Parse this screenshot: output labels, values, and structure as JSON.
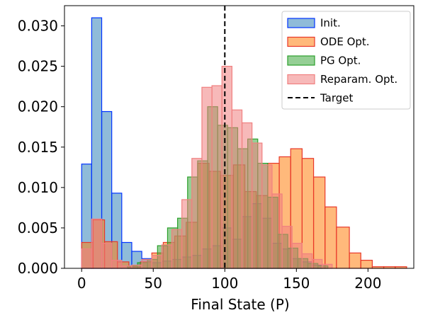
{
  "chart_data": {
    "type": "histogram",
    "xlabel": "Final State (P)",
    "ylabel": "",
    "xlim": [
      -12,
      232
    ],
    "ylim": [
      0,
      0.0325
    ],
    "xticks": [
      0,
      50,
      100,
      150,
      200
    ],
    "yticks": [
      0.0,
      0.005,
      0.01,
      0.015,
      0.02,
      0.025,
      0.03
    ],
    "ytick_labels": [
      "0.000",
      "0.005",
      "0.010",
      "0.015",
      "0.020",
      "0.025",
      "0.030"
    ],
    "target": 100,
    "legend_position": "top-right",
    "series": [
      {
        "name": "Init.",
        "face": "#1f77b4",
        "edge": "#0033ff",
        "alpha": 0.5,
        "bins": [
          [
            0,
            7,
            0.0129
          ],
          [
            7,
            14,
            0.031
          ],
          [
            14,
            21,
            0.0194
          ],
          [
            21,
            28,
            0.0093
          ],
          [
            28,
            35,
            0.0032
          ],
          [
            35,
            42,
            0.0021
          ],
          [
            42,
            49,
            0.0012
          ],
          [
            49,
            56,
            0.0007
          ],
          [
            56,
            63,
            0.0009
          ],
          [
            63,
            70,
            0.0011
          ],
          [
            70,
            77,
            0.0014
          ],
          [
            77,
            84,
            0.0016
          ],
          [
            84,
            91,
            0.0024
          ],
          [
            91,
            98,
            0.0028
          ],
          [
            98,
            105,
            0.005
          ],
          [
            105,
            112,
            0.0036
          ],
          [
            112,
            119,
            0.0064
          ],
          [
            119,
            126,
            0.008
          ],
          [
            126,
            133,
            0.0062
          ],
          [
            133,
            140,
            0.0031
          ],
          [
            140,
            147,
            0.0024
          ],
          [
            147,
            154,
            0.0012
          ],
          [
            154,
            161,
            0.0008
          ],
          [
            161,
            168,
            0.0004
          ]
        ]
      },
      {
        "name": "ODE Opt.",
        "face": "#ff7f0e",
        "edge": "#e8372a",
        "alpha": 0.55,
        "bins": [
          [
            0,
            8,
            0.0032
          ],
          [
            8,
            16,
            0.006
          ],
          [
            16,
            25,
            0.0033
          ],
          [
            25,
            33,
            0.0008
          ],
          [
            33,
            41,
            0.0002
          ],
          [
            41,
            49,
            0.0008
          ],
          [
            49,
            57,
            0.0019
          ],
          [
            57,
            65,
            0.0032
          ],
          [
            65,
            73,
            0.004
          ],
          [
            73,
            81,
            0.0057
          ],
          [
            81,
            89,
            0.013
          ],
          [
            89,
            97,
            0.012
          ],
          [
            97,
            106,
            0.0115
          ],
          [
            106,
            114,
            0.0128
          ],
          [
            114,
            122,
            0.0095
          ],
          [
            122,
            130,
            0.009
          ],
          [
            130,
            138,
            0.013
          ],
          [
            138,
            146,
            0.0138
          ],
          [
            146,
            154,
            0.0148
          ],
          [
            154,
            162,
            0.0136
          ],
          [
            162,
            170,
            0.0113
          ],
          [
            170,
            178,
            0.0076
          ],
          [
            178,
            187,
            0.0051
          ],
          [
            187,
            195,
            0.0019
          ],
          [
            195,
            203,
            0.001
          ],
          [
            203,
            211,
            0.0002
          ],
          [
            211,
            219,
            0.0002
          ],
          [
            219,
            227,
            0.0002
          ]
        ]
      },
      {
        "name": "PG Opt.",
        "face": "#2ca02c",
        "edge": "#2ca02c",
        "alpha": 0.5,
        "bins": [
          [
            32,
            39,
            0.0003
          ],
          [
            39,
            46,
            0.0007
          ],
          [
            46,
            53,
            0.0011
          ],
          [
            53,
            60,
            0.0028
          ],
          [
            60,
            67,
            0.005
          ],
          [
            67,
            74,
            0.0062
          ],
          [
            74,
            81,
            0.0113
          ],
          [
            81,
            88,
            0.0133
          ],
          [
            88,
            95,
            0.02
          ],
          [
            95,
            102,
            0.0177
          ],
          [
            102,
            109,
            0.0174
          ],
          [
            109,
            116,
            0.0148
          ],
          [
            116,
            123,
            0.016
          ],
          [
            123,
            130,
            0.013
          ],
          [
            130,
            137,
            0.0088
          ],
          [
            137,
            144,
            0.0042
          ],
          [
            144,
            151,
            0.0025
          ],
          [
            151,
            158,
            0.0012
          ],
          [
            158,
            165,
            0.0006
          ],
          [
            165,
            172,
            0.0003
          ]
        ]
      },
      {
        "name": "Reparam. Opt.",
        "face": "#f08080",
        "edge": "#f08080",
        "alpha": 0.55,
        "bins": [
          [
            0,
            7,
            0.0024
          ],
          [
            7,
            14,
            0.0061
          ],
          [
            14,
            21,
            0.0031
          ],
          [
            21,
            28,
            0.001
          ],
          [
            28,
            35,
            0.0003
          ],
          [
            35,
            42,
            0.0004
          ],
          [
            42,
            49,
            0.0011
          ],
          [
            49,
            56,
            0.0016
          ],
          [
            56,
            63,
            0.0029
          ],
          [
            63,
            70,
            0.0048
          ],
          [
            70,
            77,
            0.0085
          ],
          [
            77,
            84,
            0.0136
          ],
          [
            84,
            91,
            0.0224
          ],
          [
            91,
            98,
            0.0226
          ],
          [
            98,
            105,
            0.025
          ],
          [
            105,
            112,
            0.0196
          ],
          [
            112,
            119,
            0.018
          ],
          [
            119,
            126,
            0.0155
          ],
          [
            126,
            133,
            0.0128
          ],
          [
            133,
            140,
            0.0092
          ],
          [
            140,
            147,
            0.0052
          ],
          [
            147,
            154,
            0.0031
          ],
          [
            154,
            161,
            0.0018
          ],
          [
            161,
            168,
            0.0011
          ],
          [
            168,
            175,
            0.0005
          ]
        ]
      }
    ],
    "legend": [
      {
        "label": "Init.",
        "kind": "patch",
        "face": "#1f77b4",
        "edge": "#0033ff",
        "alpha": 0.5
      },
      {
        "label": "ODE Opt.",
        "kind": "patch",
        "face": "#ff7f0e",
        "edge": "#e8372a",
        "alpha": 0.55
      },
      {
        "label": "PG Opt.",
        "kind": "patch",
        "face": "#2ca02c",
        "edge": "#2ca02c",
        "alpha": 0.5
      },
      {
        "label": "Reparam. Opt.",
        "kind": "patch",
        "face": "#f08080",
        "edge": "#f08080",
        "alpha": 0.55
      },
      {
        "label": "Target",
        "kind": "dashed-line",
        "color": "#000000"
      }
    ]
  }
}
